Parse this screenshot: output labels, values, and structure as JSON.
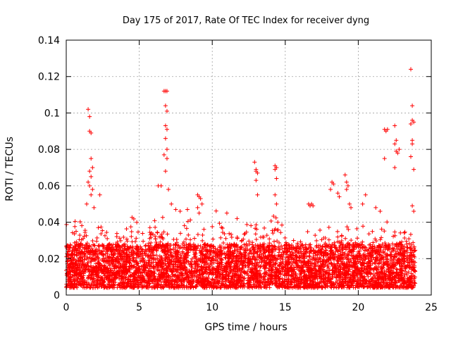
{
  "chart_data": {
    "type": "scatter",
    "title": "Day 175 of 2017, Rate Of TEC Index for receiver dyng",
    "xlabel": "GPS time / hours",
    "ylabel": "ROTI / TECUs",
    "xlim": [
      0,
      25
    ],
    "ylim": [
      0,
      0.14
    ],
    "x_ticks": [
      0,
      5,
      10,
      15,
      20,
      25
    ],
    "y_ticks": [
      0,
      0.02,
      0.04,
      0.06,
      0.08,
      0.1,
      0.12,
      0.14
    ],
    "x_tick_labels": [
      "0",
      "5",
      "10",
      "15",
      "20",
      "25"
    ],
    "y_tick_labels": [
      "0",
      "0.02",
      "0.04",
      "0.06",
      "0.08",
      "0.1",
      "0.12",
      "0.14"
    ],
    "grid": true,
    "marker": "+",
    "series_color": "#ff0000",
    "data_range_x": [
      0,
      23.9
    ],
    "series": [
      {
        "name": "ROTI",
        "band": {
          "base_min": 0.004,
          "base_max": 0.028
        },
        "x": [
          1.5,
          1.6,
          1.6,
          1.7,
          1.7,
          1.8,
          1.6,
          1.7,
          1.5,
          1.6,
          1.8,
          1.7,
          1.4,
          1.9,
          2.3,
          6.7,
          6.8,
          6.9,
          6.8,
          6.9,
          6.8,
          6.9,
          6.8,
          6.9,
          6.7,
          6.9,
          6.8,
          6.5,
          6.3,
          7.0,
          7.2,
          7.5,
          7.8,
          8.3,
          9.0,
          9.1,
          9.2,
          9.3,
          9.0,
          9.1,
          11.0,
          11.7,
          12.9,
          13.0,
          13.0,
          13.1,
          13.0,
          13.1,
          14.3,
          14.4,
          14.3,
          14.4,
          14.3,
          14.4,
          16.6,
          16.7,
          16.8,
          16.9,
          18.2,
          18.3,
          18.1,
          18.6,
          18.7,
          19.1,
          19.2,
          19.3,
          19.2,
          19.4,
          19.5,
          20.5,
          20.3,
          21.2,
          21.5,
          21.8,
          21.9,
          22.0,
          21.8,
          22.5,
          22.6,
          22.5,
          22.6,
          22.7,
          22.8,
          22.5,
          23.6,
          23.7,
          23.7,
          23.8,
          23.6,
          23.7,
          23.7,
          23.6,
          23.8,
          23.7,
          23.8
        ],
        "y": [
          0.102,
          0.098,
          0.09,
          0.089,
          0.075,
          0.07,
          0.068,
          0.065,
          0.062,
          0.06,
          0.058,
          0.055,
          0.05,
          0.048,
          0.055,
          0.112,
          0.112,
          0.112,
          0.104,
          0.101,
          0.093,
          0.091,
          0.086,
          0.08,
          0.077,
          0.075,
          0.068,
          0.06,
          0.06,
          0.058,
          0.05,
          0.047,
          0.046,
          0.047,
          0.055,
          0.054,
          0.053,
          0.05,
          0.048,
          0.045,
          0.045,
          0.042,
          0.073,
          0.069,
          0.068,
          0.067,
          0.063,
          0.055,
          0.071,
          0.07,
          0.069,
          0.064,
          0.055,
          0.05,
          0.05,
          0.049,
          0.05,
          0.049,
          0.062,
          0.061,
          0.058,
          0.056,
          0.054,
          0.066,
          0.062,
          0.06,
          0.058,
          0.05,
          0.048,
          0.055,
          0.05,
          0.048,
          0.046,
          0.091,
          0.09,
          0.091,
          0.075,
          0.093,
          0.085,
          0.083,
          0.079,
          0.078,
          0.08,
          0.07,
          0.124,
          0.104,
          0.096,
          0.095,
          0.094,
          0.085,
          0.083,
          0.076,
          0.069,
          0.049,
          0.046
        ]
      }
    ]
  }
}
